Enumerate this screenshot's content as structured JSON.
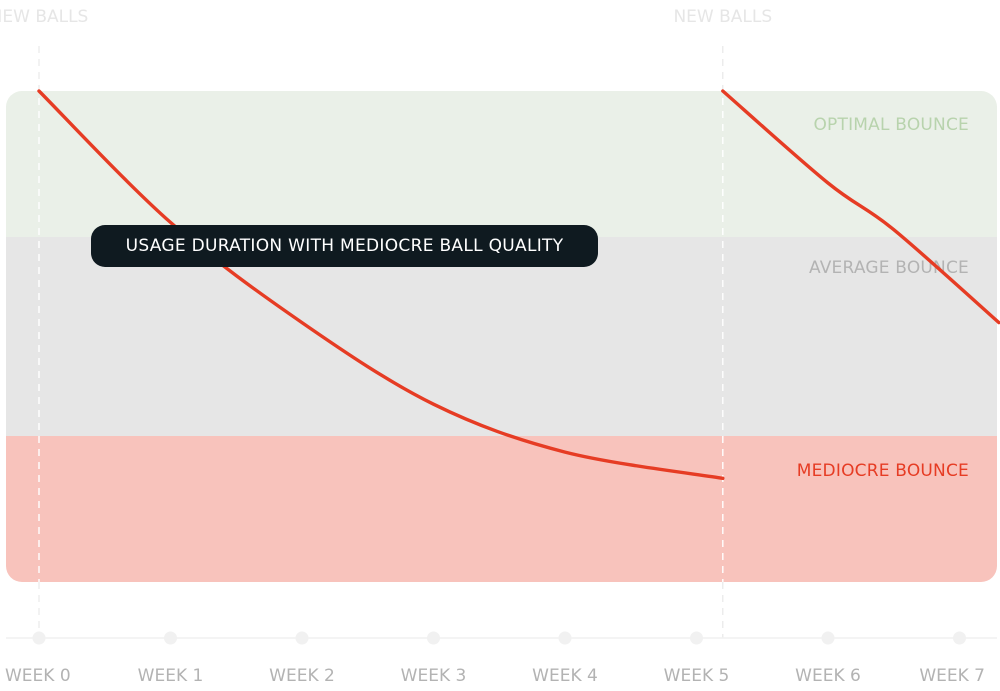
{
  "chart_data": {
    "type": "line",
    "x_ticks": [
      "WEEK 0",
      "WEEK 1",
      "WEEK 2",
      "WEEK 3",
      "WEEK 4",
      "WEEK 5",
      "WEEK 6",
      "WEEK 7"
    ],
    "markers": [
      {
        "week": 0,
        "label": "NEW BALLS"
      },
      {
        "week": 5.2,
        "label": "NEW BALLS"
      }
    ],
    "zones": [
      {
        "label": "OPTIMAL BOUNCE",
        "color": "#eaf0e8",
        "text_color": "#b8d3ad",
        "from": 2,
        "to": 3
      },
      {
        "label": "AVERAGE BOUNCE",
        "color": "#e6e6e6",
        "text_color": "#b3b3b3",
        "from": 1,
        "to": 2
      },
      {
        "label": "MEDIOCRE BOUNCE",
        "color": "#f8c3bc",
        "text_color": "#e63c24",
        "from": 0,
        "to": 1
      }
    ],
    "series": [
      {
        "color": "#e63c24",
        "segments": [
          [
            [
              0,
              3.0
            ],
            [
              1,
              2.1
            ],
            [
              2,
              1.57
            ],
            [
              3,
              1.16
            ],
            [
              4,
              0.89
            ],
            [
              5.2,
              0.71
            ]
          ],
          [
            [
              5.2,
              3.0
            ],
            [
              6,
              2.37
            ],
            [
              6.5,
              2.05
            ],
            [
              7.3,
              1.57
            ]
          ]
        ]
      }
    ],
    "annotation": "USAGE DURATION WITH MEDIOCRE BALL QUALITY"
  }
}
